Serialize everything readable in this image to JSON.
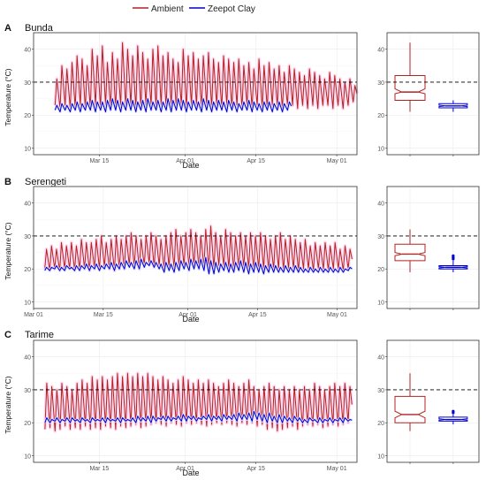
{
  "legend": {
    "items": [
      {
        "label": "Ambient",
        "color": "#b22222"
      },
      {
        "label": "Zeepot Clay",
        "color": "#0000cc"
      }
    ],
    "placement": "top-center"
  },
  "colors": {
    "ambient": "#b22222",
    "clay": "#0000cc",
    "ambient_glow": "#ffd6ee",
    "clay_glow": "#dcdcff",
    "threshold": "#000000",
    "grid": "#ebebeb",
    "panel_border": "#333333"
  },
  "chart_data": [
    {
      "type": "line",
      "panel_letter": "A",
      "title": "Bunda",
      "xlabel": "Date",
      "ylabel": "Temperature (°C)",
      "xlim": [
        "2019-03-02",
        "2019-05-05"
      ],
      "ylim": [
        8,
        45
      ],
      "x_ticks": [
        {
          "date": "2019-03-15",
          "label": "Mar 15"
        },
        {
          "date": "2019-04-01",
          "label": "Apr 01"
        },
        {
          "date": "2019-04-15",
          "label": "Apr 15"
        },
        {
          "date": "2019-05-01",
          "label": "May 01"
        }
      ],
      "y_ticks": [
        10,
        20,
        30,
        40
      ],
      "threshold": 30,
      "grid": true,
      "series": [
        {
          "name": "Ambient",
          "color": "#b22222",
          "start": "2019-03-06",
          "end": "2019-05-04",
          "daily_max": [
            31,
            35,
            34,
            36,
            38,
            37,
            35,
            40,
            38,
            41,
            36,
            39,
            37,
            42,
            40,
            38,
            41,
            39,
            37,
            40,
            41,
            38,
            39,
            37,
            36,
            40,
            38,
            39,
            37,
            38,
            39,
            37,
            36,
            38,
            37,
            36,
            37,
            35,
            36,
            34,
            37,
            35,
            36,
            34,
            35,
            33,
            35,
            34,
            33,
            32,
            34,
            33,
            32,
            31,
            33,
            32,
            31,
            30,
            31,
            29
          ],
          "daily_min": [
            23,
            22,
            23,
            22,
            22,
            23,
            22,
            22,
            23,
            22,
            23,
            22,
            22,
            23,
            22,
            23,
            22,
            22,
            23,
            23,
            22,
            23,
            22,
            23,
            22,
            23,
            22,
            23,
            23,
            22,
            23,
            22,
            23,
            22,
            23,
            22,
            23,
            22,
            23,
            22,
            23,
            22,
            22,
            23,
            23,
            22,
            23,
            23,
            22,
            23,
            22,
            23,
            22,
            23,
            23,
            22,
            23,
            22,
            23,
            24
          ]
        },
        {
          "name": "Zeepot Clay",
          "color": "#0000cc",
          "start": "2019-03-06",
          "end": "2019-04-21",
          "daily_max": [
            23,
            23.5,
            23,
            23.5,
            24,
            23.5,
            24,
            24.5,
            24,
            24,
            24.5,
            25,
            24.5,
            24,
            25,
            24.5,
            24,
            24.5,
            25,
            24,
            24.5,
            24,
            25,
            24.5,
            25,
            24.5,
            24,
            24.5,
            24,
            25,
            24.5,
            24,
            24.5,
            24,
            24.5,
            24,
            23.5,
            24,
            24.5,
            24,
            23.5,
            24,
            24,
            23.5,
            24,
            23.5,
            24
          ],
          "daily_min": [
            21.5,
            21,
            21.5,
            21,
            21.5,
            21,
            21.5,
            21.5,
            21,
            21.5,
            21,
            21.5,
            21.5,
            21,
            21.5,
            21.5,
            21,
            21.5,
            21,
            21.5,
            21.5,
            21,
            21.5,
            21,
            21.5,
            21.5,
            21,
            21.5,
            21.5,
            21,
            21.5,
            21,
            21.5,
            21.5,
            21,
            21.5,
            21,
            21.5,
            21.5,
            21,
            21.5,
            21,
            21.5,
            21,
            21.5,
            21,
            21.5
          ]
        }
      ]
    },
    {
      "type": "line",
      "panel_letter": "B",
      "title": "Serengeti",
      "xlabel": "Date",
      "ylabel": "Temperature (°C)",
      "xlim": [
        "2019-03-01",
        "2019-05-05"
      ],
      "ylim": [
        8,
        45
      ],
      "x_ticks": [
        {
          "date": "2019-03-01",
          "label": "Mar 01"
        },
        {
          "date": "2019-03-15",
          "label": "Mar 15"
        },
        {
          "date": "2019-04-01",
          "label": "Apr 01"
        },
        {
          "date": "2019-04-15",
          "label": "Apr 15"
        },
        {
          "date": "2019-05-01",
          "label": "May 01"
        }
      ],
      "y_ticks": [
        10,
        20,
        30,
        40
      ],
      "threshold": 30,
      "grid": true,
      "series": [
        {
          "name": "Ambient",
          "color": "#b22222",
          "start": "2019-03-03",
          "end": "2019-05-04",
          "daily_max": [
            26,
            27,
            26,
            28,
            27,
            28,
            27,
            29,
            28,
            28,
            29,
            30,
            28,
            29,
            30,
            29,
            30,
            31,
            30,
            29,
            30,
            31,
            30,
            29,
            30,
            31,
            32,
            30,
            31,
            32,
            31,
            30,
            32,
            33,
            31,
            30,
            32,
            31,
            30,
            31,
            30,
            31,
            30,
            31,
            30,
            29,
            30,
            31,
            29,
            30,
            29,
            28,
            29,
            27,
            28,
            27,
            28,
            27,
            28,
            26,
            27,
            26
          ],
          "daily_min": [
            20,
            19.5,
            20,
            19.5,
            20,
            20,
            19.5,
            20,
            20,
            19.5,
            20,
            20,
            20.5,
            20,
            19.5,
            20,
            20,
            21,
            20.5,
            20,
            21,
            21.5,
            20.5,
            21,
            20,
            20.5,
            20,
            20.5,
            21,
            20.5,
            21,
            20,
            20.5,
            19.5,
            20,
            21,
            20.5,
            20,
            19.5,
            20,
            20.5,
            20,
            19.5,
            20,
            20,
            19.5,
            20,
            20,
            19.5,
            20,
            20,
            19.5,
            20,
            20,
            19.5,
            20,
            20,
            19.5,
            20,
            20,
            19.5,
            20
          ]
        },
        {
          "name": "Zeepot Clay",
          "color": "#0000cc",
          "start": "2019-03-03",
          "end": "2019-05-04",
          "daily_max": [
            20.5,
            20.5,
            21,
            20.5,
            21,
            20.5,
            21,
            21,
            21.5,
            21,
            21.5,
            21,
            21.5,
            22,
            21.5,
            22,
            22.5,
            22,
            22.5,
            23,
            22,
            22.5,
            22,
            21.5,
            22,
            21.5,
            22,
            22.5,
            22,
            23,
            22.5,
            23,
            23.5,
            22.5,
            22,
            21.5,
            22,
            21.5,
            22,
            22.5,
            22,
            21.5,
            22,
            21.5,
            21,
            21.5,
            21,
            20.5,
            21,
            20.5,
            21,
            20.5,
            20,
            20.5,
            20,
            20.5,
            20,
            20.5,
            20,
            20.5,
            20,
            20.5
          ],
          "daily_min": [
            19.5,
            19.5,
            20,
            19.5,
            19.5,
            20,
            19.5,
            19.5,
            20,
            19.5,
            20,
            19.5,
            20,
            20,
            19.5,
            20,
            20,
            20.5,
            20,
            20,
            20.5,
            21,
            20.5,
            20,
            19,
            19.5,
            19,
            19.5,
            20,
            19.5,
            20,
            20,
            19.5,
            18.5,
            18.5,
            19,
            19.5,
            19,
            19,
            19.5,
            19,
            18.5,
            19,
            19,
            18.5,
            19,
            19,
            19,
            19,
            19,
            19,
            19,
            19,
            19,
            19,
            19,
            19,
            19,
            19,
            19,
            19,
            19.5
          ]
        }
      ]
    },
    {
      "type": "line",
      "panel_letter": "C",
      "title": "Tarime",
      "xlabel": "Date",
      "ylabel": "Temperature (°C)",
      "xlim": [
        "2019-03-02",
        "2019-05-05"
      ],
      "ylim": [
        8,
        45
      ],
      "x_ticks": [
        {
          "date": "2019-03-15",
          "label": "Mar 15"
        },
        {
          "date": "2019-04-01",
          "label": "Apr 01"
        },
        {
          "date": "2019-04-15",
          "label": "Apr 15"
        },
        {
          "date": "2019-05-01",
          "label": "May 01"
        }
      ],
      "y_ticks": [
        10,
        20,
        30,
        40
      ],
      "threshold": 30,
      "grid": true,
      "series": [
        {
          "name": "Ambient",
          "color": "#b22222",
          "start": "2019-03-04",
          "end": "2019-05-04",
          "daily_max": [
            32,
            31,
            30,
            32,
            31,
            30,
            32,
            33,
            32,
            34,
            33,
            34,
            33,
            34,
            35,
            34,
            35,
            34,
            35,
            34,
            35,
            34,
            33,
            34,
            33,
            32,
            33,
            34,
            33,
            32,
            33,
            32,
            33,
            32,
            31,
            32,
            33,
            32,
            31,
            32,
            33,
            31,
            30,
            31,
            32,
            31,
            30,
            31,
            30,
            31,
            30,
            31,
            30,
            32,
            31,
            30,
            31,
            32,
            31,
            32,
            31
          ],
          "daily_min": [
            18,
            18.5,
            17.5,
            18,
            19,
            18,
            18.5,
            18,
            19,
            18,
            18.5,
            18,
            19,
            18.5,
            18,
            19,
            18.5,
            19,
            19.5,
            18.5,
            19,
            19.5,
            20,
            19.5,
            19,
            20,
            19.5,
            19,
            20,
            19.5,
            20,
            19.5,
            19,
            19.5,
            20,
            19.5,
            20,
            19.5,
            19,
            20,
            19.5,
            20,
            19,
            19.5,
            18,
            18.5,
            17.5,
            18,
            18.5,
            19,
            18,
            19,
            19.5,
            19,
            19.5,
            18.5,
            19,
            19.5,
            19,
            19.5,
            20
          ]
        },
        {
          "name": "Zeepot Clay",
          "color": "#0000cc",
          "start": "2019-03-04",
          "end": "2019-05-04",
          "daily_max": [
            21.5,
            21,
            21.5,
            21,
            21.5,
            21.5,
            21,
            21.5,
            21,
            21.5,
            21,
            21.5,
            21.5,
            21,
            21.5,
            21.5,
            21,
            21.5,
            22,
            21.5,
            22,
            22,
            21.5,
            22,
            22,
            21.5,
            22,
            22.5,
            22,
            22,
            21.5,
            22,
            22.5,
            22,
            22,
            22.5,
            22,
            22.5,
            23,
            22.5,
            23,
            23.5,
            23,
            22.5,
            23,
            22,
            22.5,
            22,
            21.5,
            22,
            21.5,
            21,
            21.5,
            21,
            21.5,
            21,
            21.5,
            21,
            21.5,
            21.5,
            21
          ],
          "daily_min": [
            20,
            20,
            20.5,
            20,
            20.5,
            20,
            20.5,
            20,
            20.5,
            20,
            20.5,
            20.5,
            20,
            20.5,
            20.5,
            20,
            20.5,
            20.5,
            20,
            20.5,
            20.5,
            20,
            20.5,
            21,
            20.5,
            20.5,
            21,
            20.5,
            20.5,
            21,
            20.5,
            21,
            21,
            20.5,
            21,
            20.5,
            21,
            21,
            20.5,
            21,
            21,
            20.5,
            21,
            20.5,
            20,
            20.5,
            20,
            20,
            20.5,
            20,
            20.5,
            20,
            20,
            20.5,
            20,
            20,
            20.5,
            20,
            20.5,
            20,
            20.5
          ]
        }
      ]
    }
  ],
  "boxplots": [
    {
      "panel_letter": "A",
      "ylim": [
        8,
        45
      ],
      "y_ticks": [
        10,
        20,
        30,
        40
      ],
      "threshold": 30,
      "ambient": {
        "whisker_low": 21,
        "q1": 24.5,
        "median": 27,
        "q3": 32,
        "whisker_high": 42,
        "notch_low": 26.5,
        "notch_high": 28
      },
      "clay": {
        "whisker_low": 21,
        "q1": 22.2,
        "median": 22.8,
        "q3": 23.5,
        "whisker_high": 24.5,
        "notch_low": 22.6,
        "notch_high": 23.0,
        "outliers": []
      }
    },
    {
      "panel_letter": "B",
      "ylim": [
        8,
        45
      ],
      "y_ticks": [
        10,
        20,
        30,
        40
      ],
      "threshold": 30,
      "ambient": {
        "whisker_low": 19,
        "q1": 22.5,
        "median": 24.5,
        "q3": 27.5,
        "whisker_high": 32,
        "notch_low": 24,
        "notch_high": 25
      },
      "clay": {
        "whisker_low": 19,
        "q1": 20,
        "median": 20.5,
        "q3": 21,
        "whisker_high": 22.5,
        "notch_low": 20.3,
        "notch_high": 20.7,
        "outliers": [
          23,
          23.5,
          24
        ]
      }
    },
    {
      "panel_letter": "C",
      "ylim": [
        8,
        45
      ],
      "y_ticks": [
        10,
        20,
        30,
        40
      ],
      "threshold": 30,
      "ambient": {
        "whisker_low": 17.5,
        "q1": 20,
        "median": 22.5,
        "q3": 28,
        "whisker_high": 35,
        "notch_low": 21.5,
        "notch_high": 23.5
      },
      "clay": {
        "whisker_low": 19.5,
        "q1": 20.5,
        "median": 21,
        "q3": 21.7,
        "whisker_high": 22.5,
        "notch_low": 20.8,
        "notch_high": 21.2,
        "outliers": [
          23,
          23.5
        ]
      }
    }
  ]
}
